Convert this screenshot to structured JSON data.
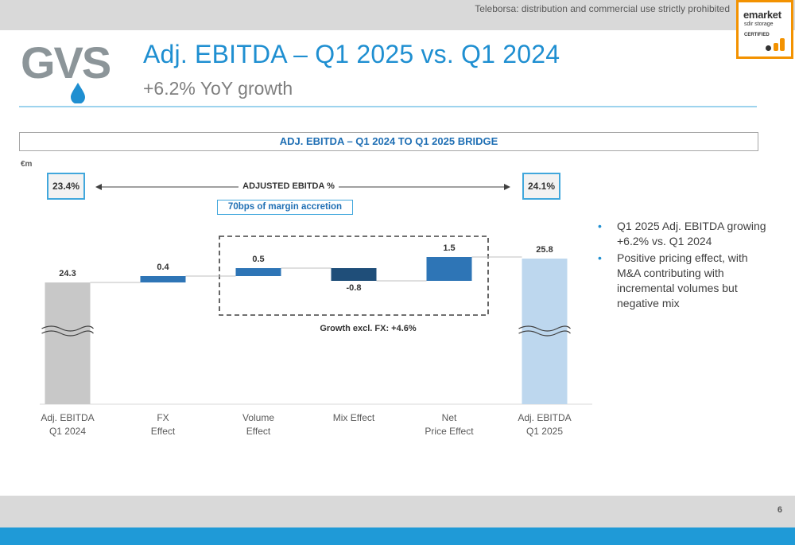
{
  "header": {
    "disclaimer": "Teleborsa: distribution and commercial use strictly prohibited",
    "badge": {
      "line1": "emarket",
      "line2": "sdir storage",
      "line3": "CERTIFIED"
    }
  },
  "logo": {
    "text": "GVS",
    "color": "#8c9599",
    "drop_color": "#1f8fd1"
  },
  "page_title": "Adj. EBITDA – Q1 2025 vs. Q1 2024",
  "subtitle": "+6.2% YoY growth",
  "colors": {
    "accent": "#1f8fd1",
    "start_bar": "#c8c8c8",
    "end_bar": "#bdd7ee",
    "positive": "#2e75b6",
    "negative": "#1f4e79"
  },
  "chart_data": {
    "type": "waterfall",
    "title": "ADJ. EBITDA – Q1 2024 TO Q1 2025 BRIDGE",
    "unit": "€m",
    "categories": [
      "Adj. EBITDA\nQ1 2024",
      "FX\nEffect",
      "Volume\nEffect",
      "Mix Effect",
      "Net\nPrice Effect",
      "Adj. EBITDA\nQ1 2025"
    ],
    "values": [
      24.3,
      0.4,
      0.5,
      -0.8,
      1.5,
      25.8
    ],
    "labels": [
      "24.3",
      "0.4",
      "0.5",
      "-0.8",
      "1.5",
      "25.8"
    ],
    "kinds": [
      "total",
      "delta",
      "delta",
      "delta",
      "delta",
      "total"
    ],
    "axis_break": true,
    "margin_start": "23.4%",
    "margin_end": "24.1%",
    "margin_label": "ADJUSTED EBITDA %",
    "margin_note": "70bps of margin accretion",
    "bracket_label": "Growth excl. FX: +4.6%"
  },
  "bullets": [
    "Q1 2025 Adj. EBITDA growing +6.2% vs. Q1 2024",
    "Positive pricing effect, with M&A contributing with incremental volumes but negative mix"
  ],
  "footer": {
    "page_number": "6"
  }
}
